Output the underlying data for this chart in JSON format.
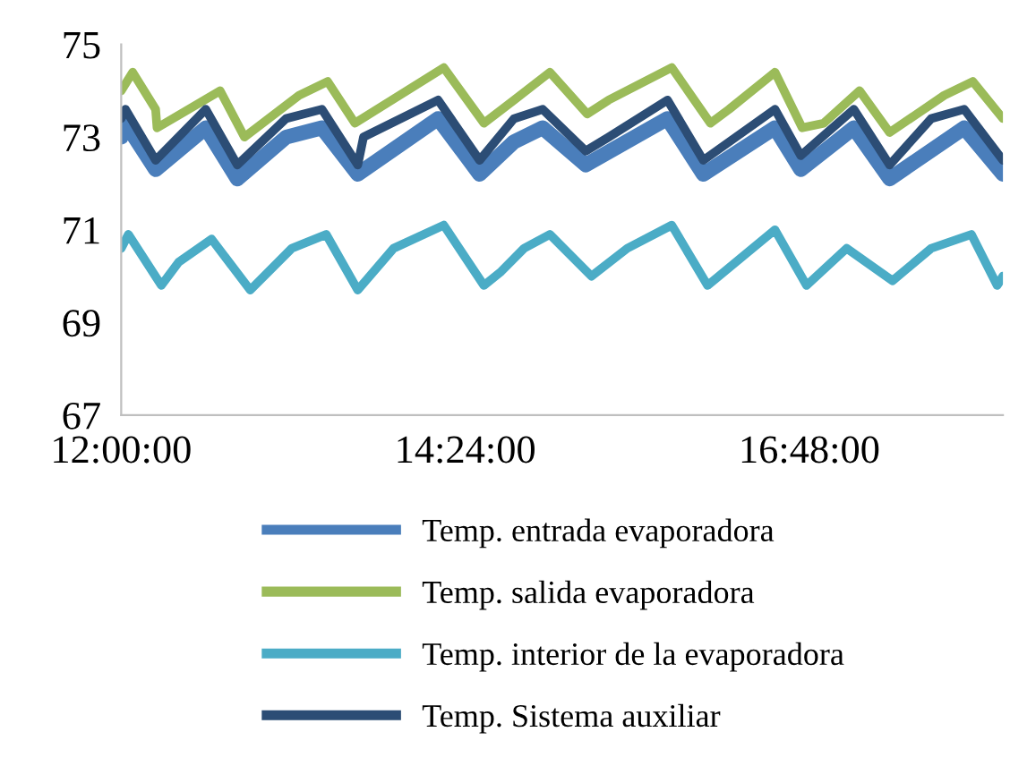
{
  "chart_data": {
    "type": "line",
    "xlim": [
      12,
      18.15
    ],
    "xticks": [
      {
        "value": 12,
        "label": "12:00:00"
      },
      {
        "value": 14.4,
        "label": "14:24:00"
      },
      {
        "value": 16.8,
        "label": "16:48:00"
      }
    ],
    "ylim": [
      67,
      75
    ],
    "yticks": [
      67,
      69,
      71,
      73,
      75
    ],
    "grid": false,
    "legend": "bottom",
    "marker": "none",
    "line_style": "solid",
    "series": [
      {
        "name": "Temp. entrada evaporadora",
        "color": "#4a7ebb",
        "x": [
          12.0,
          12.03,
          12.24,
          12.59,
          12.81,
          13.15,
          13.4,
          13.65,
          14.21,
          14.5,
          14.74,
          14.94,
          15.24,
          15.81,
          16.06,
          16.56,
          16.74,
          17.11,
          17.36,
          17.88,
          18.15
        ],
        "values": [
          73.0,
          73.3,
          72.3,
          73.2,
          72.1,
          73.0,
          73.2,
          72.2,
          73.4,
          72.2,
          72.9,
          73.2,
          72.4,
          73.4,
          72.2,
          73.2,
          72.3,
          73.2,
          72.1,
          73.2,
          72.2
        ]
      },
      {
        "name": "Temp. salida evaporadora",
        "color": "#9bbb59",
        "x": [
          12.0,
          12.08,
          12.24,
          12.25,
          12.69,
          12.86,
          13.24,
          13.44,
          13.63,
          14.25,
          14.53,
          14.74,
          14.99,
          15.25,
          15.4,
          15.84,
          16.11,
          16.24,
          16.56,
          16.75,
          16.9,
          17.15,
          17.36,
          17.74,
          17.94,
          18.15
        ],
        "values": [
          74.0,
          74.4,
          73.6,
          73.2,
          74.0,
          73.0,
          73.9,
          74.2,
          73.3,
          74.5,
          73.3,
          73.8,
          74.4,
          73.5,
          73.8,
          74.5,
          73.3,
          73.6,
          74.4,
          73.2,
          73.3,
          74.0,
          73.1,
          73.9,
          74.2,
          73.4
        ]
      },
      {
        "name": "Temp. interior de la evaporadora",
        "color": "#4bacc6",
        "x": [
          12.0,
          12.05,
          12.28,
          12.4,
          12.63,
          12.9,
          13.19,
          13.43,
          13.65,
          13.9,
          14.25,
          14.53,
          14.65,
          14.81,
          14.99,
          15.28,
          15.53,
          15.84,
          16.09,
          16.56,
          16.78,
          17.06,
          17.38,
          17.65,
          17.93,
          18.11,
          18.15
        ],
        "values": [
          70.6,
          70.9,
          69.8,
          70.3,
          70.8,
          69.7,
          70.6,
          70.9,
          69.7,
          70.6,
          71.1,
          69.8,
          70.1,
          70.6,
          70.9,
          70.0,
          70.6,
          71.1,
          69.8,
          71.0,
          69.8,
          70.6,
          69.9,
          70.6,
          70.9,
          69.8,
          70.0
        ]
      },
      {
        "name": "Temp. Sistema auxiliar",
        "color": "#2c4d75",
        "x": [
          12.0,
          12.03,
          12.24,
          12.59,
          12.81,
          13.15,
          13.4,
          13.65,
          13.69,
          14.21,
          14.5,
          14.74,
          14.94,
          15.24,
          15.4,
          15.81,
          16.06,
          16.56,
          16.74,
          17.11,
          17.36,
          17.65,
          17.88,
          18.15
        ],
        "values": [
          73.4,
          73.6,
          72.5,
          73.6,
          72.4,
          73.4,
          73.6,
          72.4,
          73.0,
          73.8,
          72.5,
          73.4,
          73.6,
          72.7,
          73.0,
          73.8,
          72.5,
          73.6,
          72.6,
          73.6,
          72.4,
          73.4,
          73.6,
          72.5
        ]
      }
    ]
  }
}
